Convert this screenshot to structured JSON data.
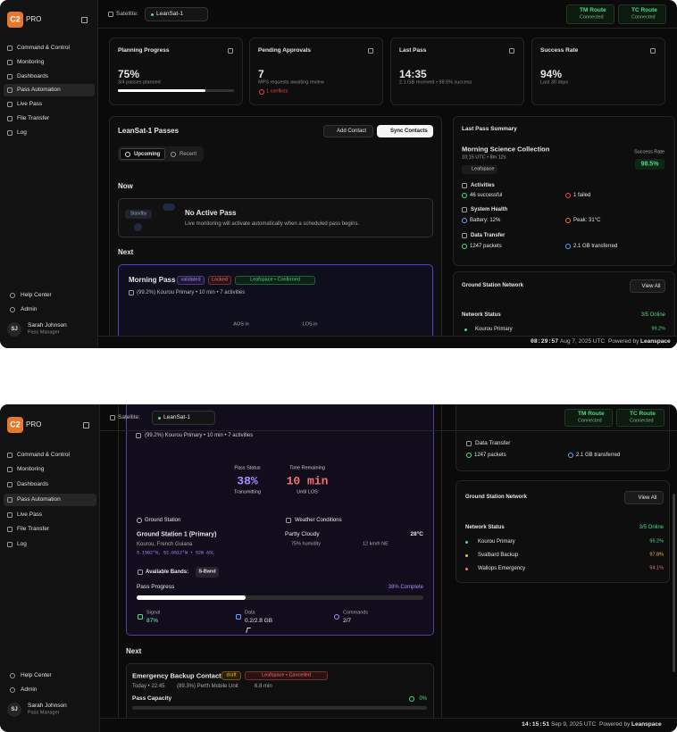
{
  "screens": [
    {
      "sidebar": {
        "logo": "C2",
        "brand": "PRO",
        "nav": [
          "Command & Control",
          "Monitoring",
          "Dashboards",
          "Pass Automation",
          "Live Pass",
          "File Transfer",
          "Log"
        ],
        "footer_nav": [
          "Help Center",
          "Admin"
        ],
        "user": {
          "initials": "SJ",
          "name": "Sarah Johnson",
          "role": "Pass Manager"
        }
      },
      "header": {
        "satellite_label": "Satellite:",
        "satellite": "LeanSat-1",
        "routes": [
          {
            "name": "TM Route",
            "status": "Connected"
          },
          {
            "name": "TC Route",
            "status": "Connected"
          }
        ]
      },
      "stats": [
        {
          "title": "Planning Progress",
          "value": "75%",
          "detail": "3/4 passes planned"
        },
        {
          "title": "Pending Approvals",
          "value": "7",
          "detail": "MPS requests awaiting review",
          "alert": "1 conflicts"
        },
        {
          "title": "Last Pass",
          "value": "14:35",
          "detail": "2.1 GB received • 98.5% success"
        },
        {
          "title": "Success Rate",
          "value": "94%",
          "detail": "Last 30 days"
        }
      ],
      "passes": {
        "title": "LeanSat-1 Passes",
        "buttons": [
          "Add Contact",
          "Sync Contacts"
        ],
        "tabs": [
          "Upcoming",
          "Recent"
        ],
        "now_heading": "Now",
        "now": {
          "badge": "Standby",
          "title": "No Active Pass",
          "text": "Live monitoring will activate automatically when a scheduled pass begins."
        },
        "next_heading": "Next",
        "next": {
          "name": "Morning Pass",
          "tags": [
            "validated",
            "Locked",
            "Leafspace • Confirmed"
          ],
          "detail": "(99.2%) Kourou Primary • 10 min • 7 activities",
          "aos_label": "AOS in",
          "los_label": "LOS in"
        }
      },
      "summary": {
        "title": "Last Pass Summary",
        "pass_name": "Morning Science Collection",
        "time": "10:15 UTC • 8m 12s",
        "provider": "Leafspace",
        "success_label": "Success Rate",
        "success": "98.5%",
        "activities_label": "Activities",
        "successful": "46 successful",
        "failed": "1 failed",
        "health_label": "System Health",
        "battery": "Battery: 12%",
        "peak": "Peak: 31°C",
        "transfer_label": "Data Transfer",
        "packets": "1247 packets",
        "transferred": "2.1 GB transferred"
      },
      "network": {
        "title": "Ground Station Network",
        "button": "View All",
        "status_label": "Network Status",
        "status": "3/5 Online",
        "stations": [
          {
            "name": "Kourou Primary",
            "value": "99.2%"
          }
        ]
      },
      "footer": {
        "time": "08:29:57",
        "date": "Aug 7, 2025 UTC",
        "powered": "Powered by",
        "brand": "Leanspace"
      }
    },
    {
      "sidebar": {
        "logo": "C2",
        "brand": "PRO",
        "nav": [
          "Command & Control",
          "Monitoring",
          "Dashboards",
          "Pass Automation",
          "Live Pass",
          "File Transfer",
          "Log"
        ],
        "footer_nav": [
          "Help Center",
          "Admin"
        ],
        "user": {
          "initials": "SJ",
          "name": "Sarah Johnson",
          "role": "Pass Manager"
        }
      },
      "header": {
        "satellite_label": "Satellite:",
        "satellite": "LeanSat-1",
        "routes": [
          {
            "name": "TM Route",
            "status": "Connected"
          },
          {
            "name": "TC Route",
            "status": "Connected"
          }
        ]
      },
      "live_pass": {
        "detail": "(99.2%) Kourou Primary • 10 min • 7 activities",
        "status_label": "Pass Status",
        "status_value": "38%",
        "status_text": "Transmitting",
        "remaining_label": "Time Remaining",
        "remaining_value": "10 min",
        "remaining_text": "Until LOS",
        "station_label": "Ground Station",
        "weather_label": "Weather Conditions",
        "station_name": "Ground Station 1 (Primary)",
        "station_location": "Kourou, French Guiana",
        "station_coords": "5.1582°N, 52.6512°W • 52m ASL",
        "weather": "Partly Cloudy",
        "temperature": "28°C",
        "humidity": "75% humidity",
        "wind": "12 km/h NE",
        "bands_label": "Available Bands:",
        "band": "S-Band",
        "progress_label": "Pass Progress",
        "progress": "38% Complete",
        "metrics": [
          {
            "label": "Signal",
            "value": "87%"
          },
          {
            "label": "Data",
            "value": "0.2/2.8 GB"
          },
          {
            "label": "Commands",
            "value": "2/7"
          }
        ]
      },
      "next_heading": "Next",
      "next": {
        "name": "Emergency Backup Contact",
        "tags": [
          "draft",
          "Leafspace • Cancelled"
        ],
        "date": "Today • 22:45",
        "station": "(89.3%) Perth Mobile Unit",
        "duration": "6.8 min",
        "capacity_label": "Pass Capacity",
        "capacity": "0%"
      },
      "summary": {
        "transfer_label": "Data Transfer",
        "packets": "1247 packets",
        "transferred": "2.1 GB transferred"
      },
      "network": {
        "title": "Ground Station Network",
        "button": "View All",
        "status_label": "Network Status",
        "status": "3/5 Online",
        "stations": [
          {
            "name": "Kourou Primary",
            "value": "95.2%"
          },
          {
            "name": "Svalbard Backup",
            "value": "97.8%"
          },
          {
            "name": "Wallops Emergency",
            "value": "94.1%"
          }
        ]
      },
      "footer": {
        "time": "14:15:51",
        "date": "Sep 9, 2025 UTC",
        "powered": "Powered by",
        "brand": "Leanspace"
      }
    }
  ]
}
